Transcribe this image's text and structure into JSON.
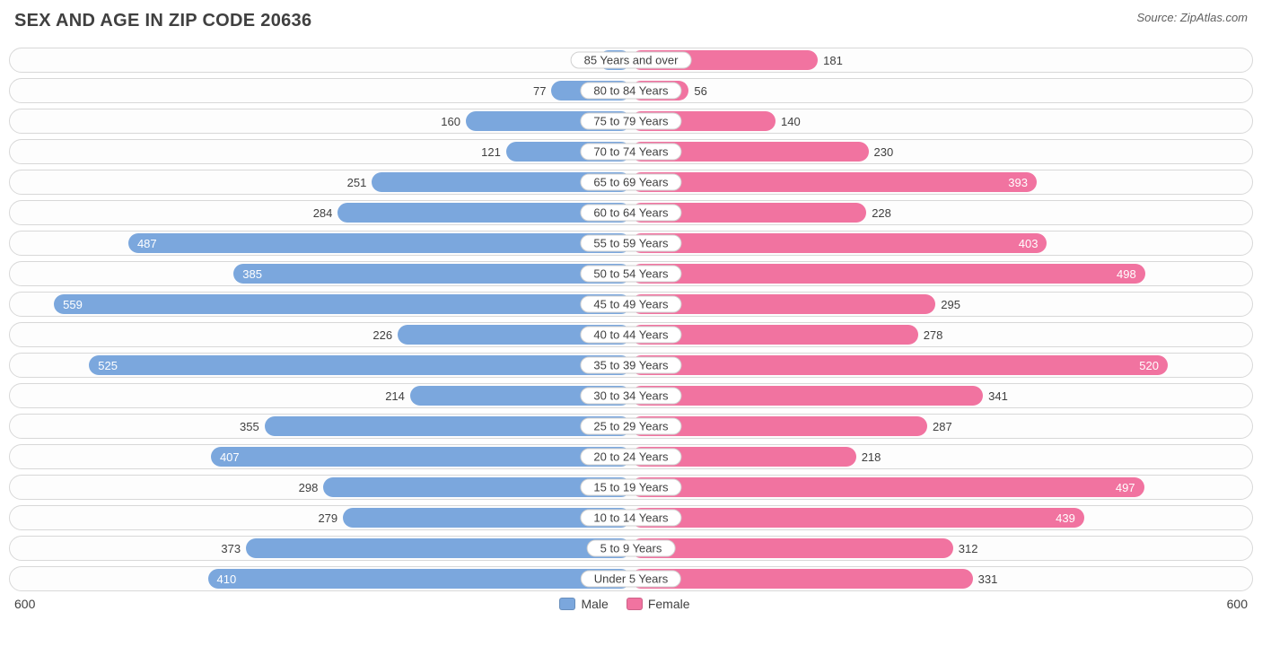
{
  "title": "SEX AND AGE IN ZIP CODE 20636",
  "source": "Source: ZipAtlas.com",
  "chart": {
    "type": "population-pyramid",
    "axis_max": 600,
    "axis_label": "600",
    "male_color": "#7ba7dd",
    "female_color": "#f173a0",
    "track_border": "#d8d8d8",
    "background": "#ffffff",
    "label_fontsize": 13,
    "title_fontsize": 20,
    "inside_threshold": 380,
    "rows": [
      {
        "label": "85 Years and over",
        "male": 31,
        "female": 181
      },
      {
        "label": "80 to 84 Years",
        "male": 77,
        "female": 56
      },
      {
        "label": "75 to 79 Years",
        "male": 160,
        "female": 140
      },
      {
        "label": "70 to 74 Years",
        "male": 121,
        "female": 230
      },
      {
        "label": "65 to 69 Years",
        "male": 251,
        "female": 393
      },
      {
        "label": "60 to 64 Years",
        "male": 284,
        "female": 228
      },
      {
        "label": "55 to 59 Years",
        "male": 487,
        "female": 403
      },
      {
        "label": "50 to 54 Years",
        "male": 385,
        "female": 498
      },
      {
        "label": "45 to 49 Years",
        "male": 559,
        "female": 295
      },
      {
        "label": "40 to 44 Years",
        "male": 226,
        "female": 278
      },
      {
        "label": "35 to 39 Years",
        "male": 525,
        "female": 520
      },
      {
        "label": "30 to 34 Years",
        "male": 214,
        "female": 341
      },
      {
        "label": "25 to 29 Years",
        "male": 355,
        "female": 287
      },
      {
        "label": "20 to 24 Years",
        "male": 407,
        "female": 218
      },
      {
        "label": "15 to 19 Years",
        "male": 298,
        "female": 497
      },
      {
        "label": "10 to 14 Years",
        "male": 279,
        "female": 439
      },
      {
        "label": "5 to 9 Years",
        "male": 373,
        "female": 312
      },
      {
        "label": "Under 5 Years",
        "male": 410,
        "female": 331
      }
    ],
    "legend": {
      "male": "Male",
      "female": "Female"
    }
  }
}
